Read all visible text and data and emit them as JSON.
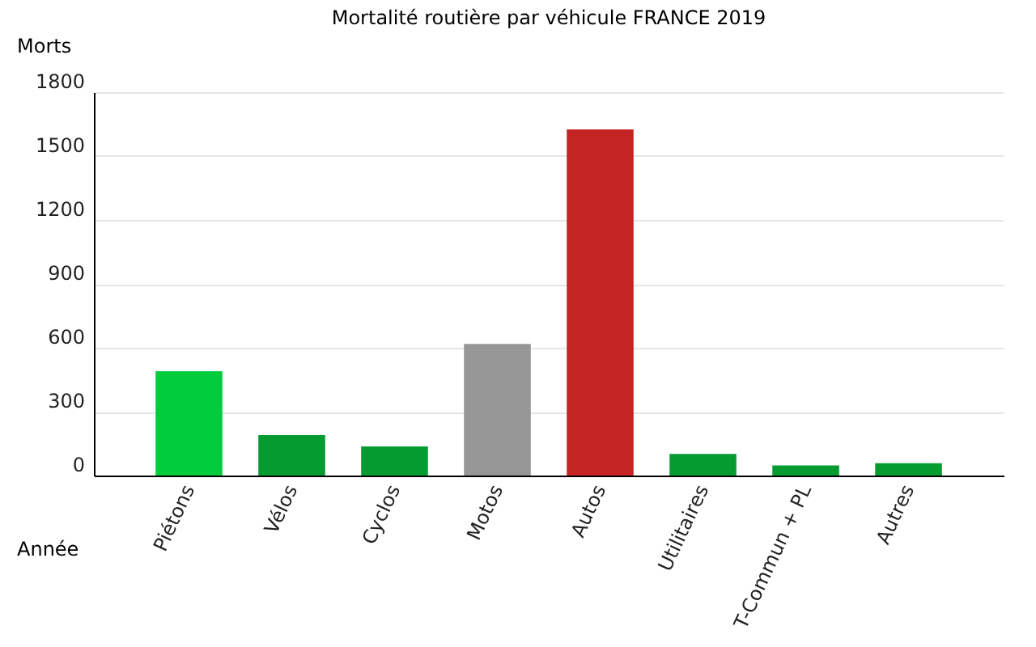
{
  "chart_data": {
    "type": "bar",
    "title": "Mortalité routière par véhicule FRANCE 2019",
    "xlabel": "Année",
    "ylabel": "Morts",
    "categories": [
      "Piétons",
      "Vélos",
      "Cyclos",
      "Motos",
      "Autos",
      "Utilitaires",
      "T-Commun + PL",
      "Autres"
    ],
    "values": [
      490,
      190,
      137,
      618,
      1625,
      102,
      47,
      58
    ],
    "colors": [
      "#00cc3d",
      "#059b30",
      "#059b30",
      "#969696",
      "#c42424",
      "#059b30",
      "#059b30",
      "#059b30"
    ],
    "ylim": [
      0,
      1800
    ],
    "yticks": [
      0,
      300,
      600,
      900,
      1200,
      1500,
      1800
    ],
    "grid": "y",
    "legend": false
  }
}
